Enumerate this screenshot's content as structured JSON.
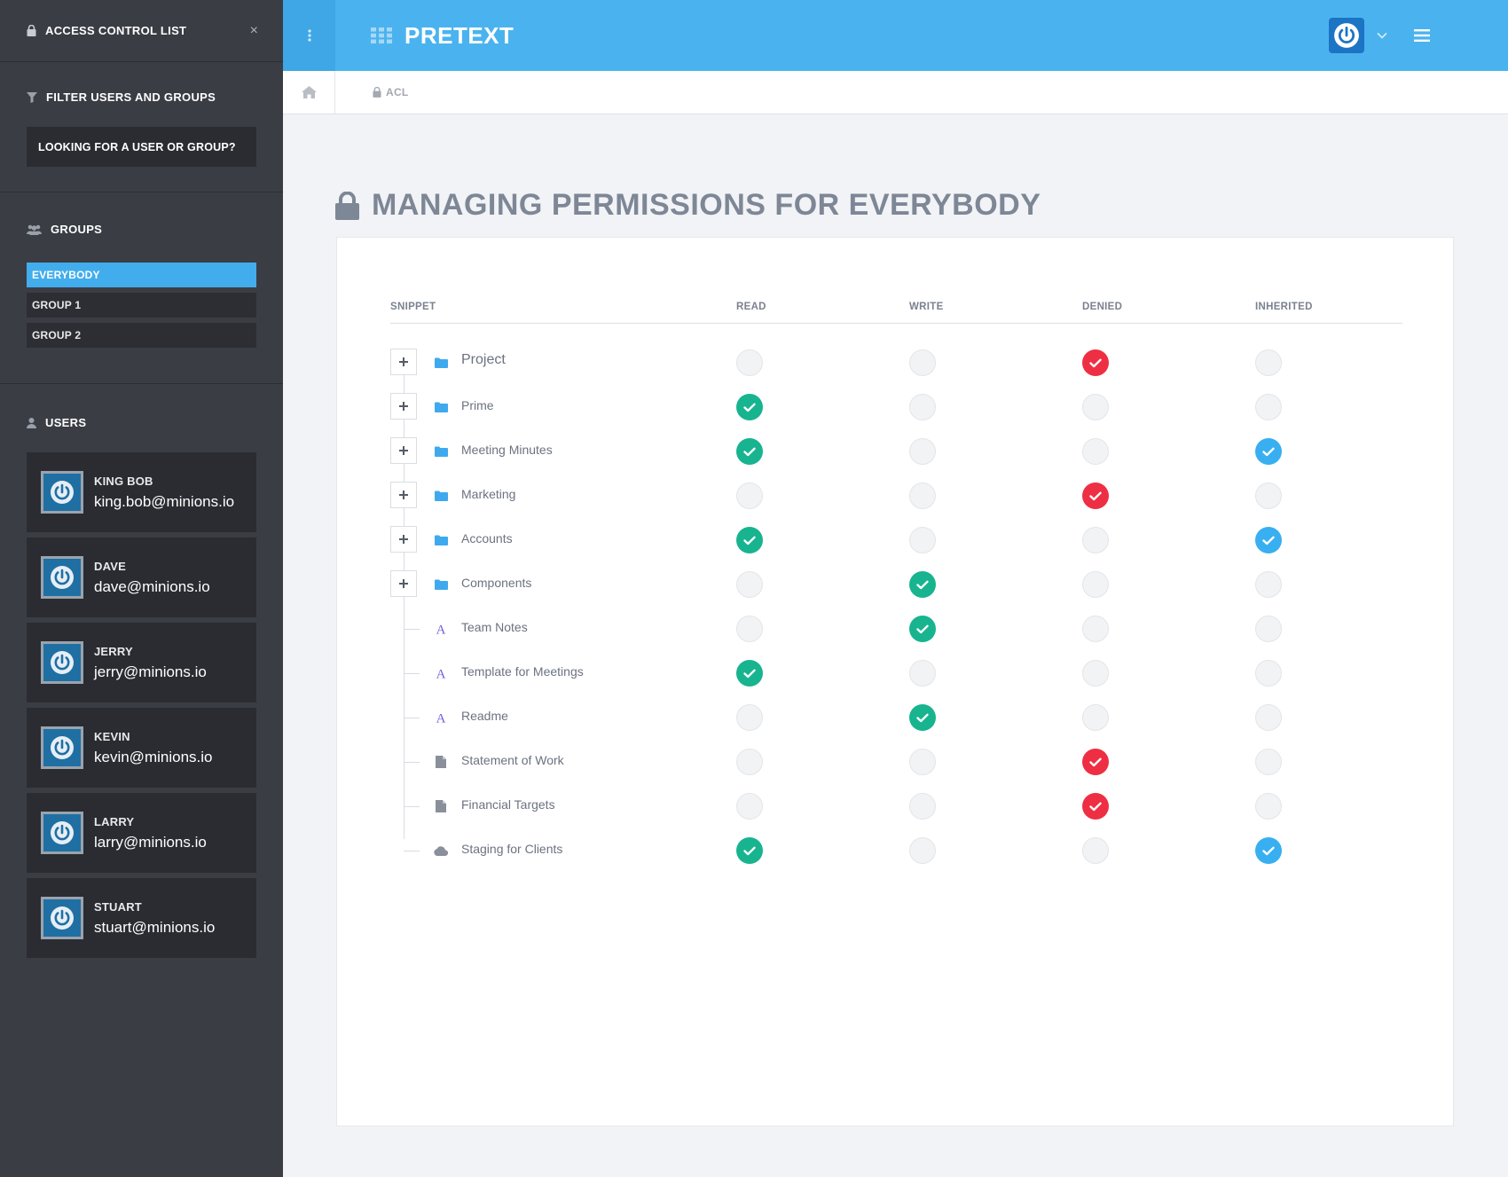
{
  "sidebar": {
    "title": "ACCESS CONTROL LIST",
    "close_label": "×",
    "filter": {
      "title": "FILTER USERS AND GROUPS",
      "placeholder": "LOOKING FOR A USER OR GROUP?"
    },
    "groups_title": "GROUPS",
    "groups": [
      {
        "label": "EVERYBODY",
        "active": true
      },
      {
        "label": "GROUP 1",
        "active": false
      },
      {
        "label": "GROUP 2",
        "active": false
      }
    ],
    "users_title": "USERS",
    "users": [
      {
        "name": "KING BOB",
        "email": "king.bob@minions.io"
      },
      {
        "name": "DAVE",
        "email": "dave@minions.io"
      },
      {
        "name": "JERRY",
        "email": "jerry@minions.io"
      },
      {
        "name": "KEVIN",
        "email": "kevin@minions.io"
      },
      {
        "name": "LARRY",
        "email": "larry@minions.io"
      },
      {
        "name": "STUART",
        "email": "stuart@minions.io"
      }
    ]
  },
  "topbar": {
    "brand": "PRETEXT"
  },
  "breadcrumb": {
    "current": "ACL"
  },
  "page": {
    "title": "MANAGING PERMISSIONS FOR EVERYBODY"
  },
  "table": {
    "columns": [
      "SNIPPET",
      "READ",
      "WRITE",
      "DENIED",
      "INHERITED"
    ],
    "rows": [
      {
        "label": "Project",
        "icon": "folder-icon",
        "expandable": true,
        "read": false,
        "write": false,
        "denied": true,
        "inherited": false
      },
      {
        "label": "Prime",
        "icon": "folder-icon",
        "expandable": true,
        "read": true,
        "write": false,
        "denied": false,
        "inherited": false
      },
      {
        "label": "Meeting Minutes",
        "icon": "folder-icon",
        "expandable": true,
        "read": true,
        "write": false,
        "denied": false,
        "inherited": true
      },
      {
        "label": "Marketing",
        "icon": "folder-icon",
        "expandable": true,
        "read": false,
        "write": false,
        "denied": true,
        "inherited": false
      },
      {
        "label": "Accounts",
        "icon": "folder-icon",
        "expandable": true,
        "read": true,
        "write": false,
        "denied": false,
        "inherited": true
      },
      {
        "label": "Components",
        "icon": "folder-icon",
        "expandable": true,
        "read": false,
        "write": true,
        "denied": false,
        "inherited": false
      },
      {
        "label": "Team Notes",
        "icon": "font-icon",
        "expandable": false,
        "read": false,
        "write": true,
        "denied": false,
        "inherited": false
      },
      {
        "label": "Template for Meetings",
        "icon": "font-icon",
        "expandable": false,
        "read": true,
        "write": false,
        "denied": false,
        "inherited": false
      },
      {
        "label": "Readme",
        "icon": "font-icon",
        "expandable": false,
        "read": false,
        "write": true,
        "denied": false,
        "inherited": false
      },
      {
        "label": "Statement of Work",
        "icon": "file-icon",
        "expandable": false,
        "read": false,
        "write": false,
        "denied": true,
        "inherited": false
      },
      {
        "label": "Financial Targets",
        "icon": "file-icon",
        "expandable": false,
        "read": false,
        "write": false,
        "denied": true,
        "inherited": false
      },
      {
        "label": "Staging for Clients",
        "icon": "cloud-icon",
        "expandable": false,
        "read": true,
        "write": false,
        "denied": false,
        "inherited": true
      }
    ]
  },
  "colors": {
    "accent": "#4ab3ef",
    "sidebar": "#3a3d44",
    "read_check": "#17b48f",
    "write_check": "#17b48f",
    "denied_check": "#ee2f43",
    "inherited_check": "#38aff0"
  }
}
